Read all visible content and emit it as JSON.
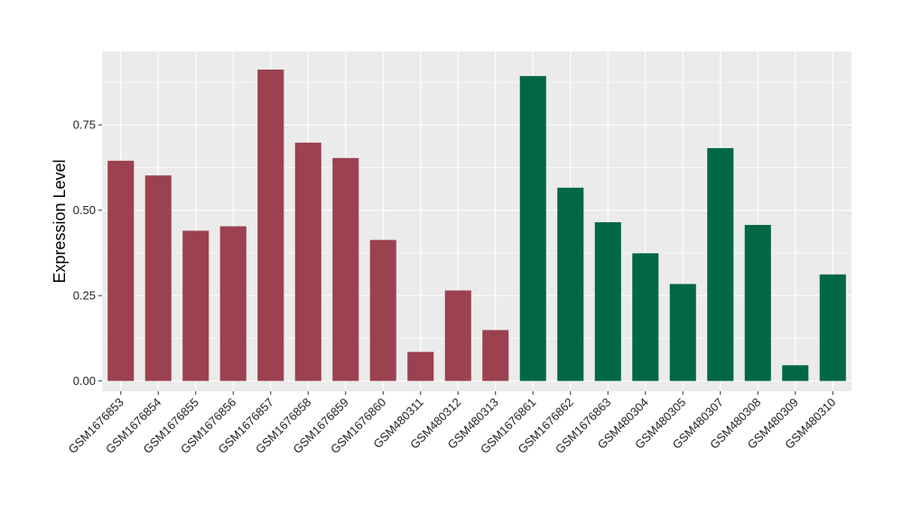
{
  "chart_data": {
    "type": "bar",
    "title": "",
    "xlabel": "",
    "ylabel": "Expression Level",
    "ylim": [
      -0.03,
      0.965
    ],
    "yticks": [
      0.0,
      0.25,
      0.5,
      0.75
    ],
    "ytick_labels": [
      "0.00",
      "0.25",
      "0.50",
      "0.75"
    ],
    "grid": true,
    "categories": [
      "GSM1676853",
      "GSM1676854",
      "GSM1676855",
      "GSM1676856",
      "GSM1676857",
      "GSM1676858",
      "GSM1676859",
      "GSM1676860",
      "GSM480311",
      "GSM480312",
      "GSM480313",
      "GSM1676861",
      "GSM1676862",
      "GSM1676863",
      "GSM480304",
      "GSM480305",
      "GSM480307",
      "GSM480308",
      "GSM480309",
      "GSM480310"
    ],
    "values": [
      0.645,
      0.602,
      0.44,
      0.453,
      0.912,
      0.698,
      0.653,
      0.413,
      0.085,
      0.265,
      0.149,
      0.893,
      0.566,
      0.465,
      0.374,
      0.284,
      0.682,
      0.457,
      0.046,
      0.312
    ],
    "bar_colors": [
      "#9B4150",
      "#9B4150",
      "#9B4150",
      "#9B4150",
      "#9B4150",
      "#9B4150",
      "#9B4150",
      "#9B4150",
      "#9B4150",
      "#9B4150",
      "#9B4150",
      "#016744",
      "#016744",
      "#016744",
      "#016744",
      "#016744",
      "#016744",
      "#016744",
      "#016744",
      "#016744"
    ],
    "panel_color": "#EBEBEB",
    "grid_color": "#FFFFFF"
  }
}
